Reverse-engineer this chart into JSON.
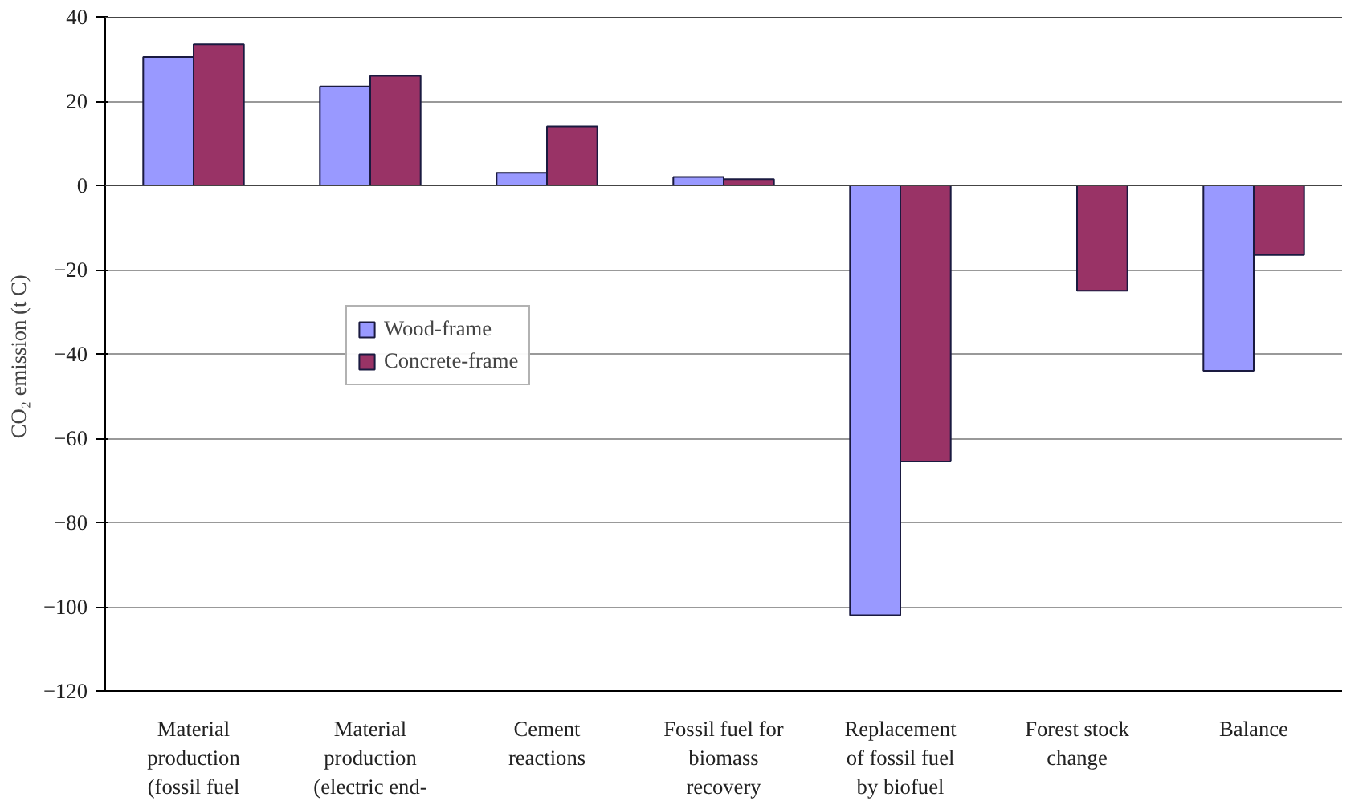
{
  "chart_data": {
    "type": "bar",
    "ylabel": "CO₂ emission  (t C)",
    "categories": [
      "Material\nproduction\n(fossil fuel",
      "Material\nproduction\n(electric end-",
      "Cement\nreactions",
      "Fossil fuel for\nbiomass\nrecovery",
      "Replacement\nof fossil fuel\nby biofuel",
      "Forest stock\nchange",
      "Balance"
    ],
    "series": [
      {
        "name": "Wood-frame",
        "color": "#9999ff",
        "values": [
          30.5,
          23.5,
          3,
          2,
          -102,
          null,
          -44
        ]
      },
      {
        "name": "Concrete-frame",
        "color": "#993366",
        "values": [
          33.5,
          26,
          14,
          1.5,
          -65.5,
          -25,
          -16.5
        ]
      }
    ],
    "ylim": [
      -120,
      40
    ],
    "yticks": [
      -120,
      -100,
      -80,
      -60,
      -40,
      -20,
      0,
      20,
      40
    ],
    "grid": "y",
    "legend": "left"
  }
}
